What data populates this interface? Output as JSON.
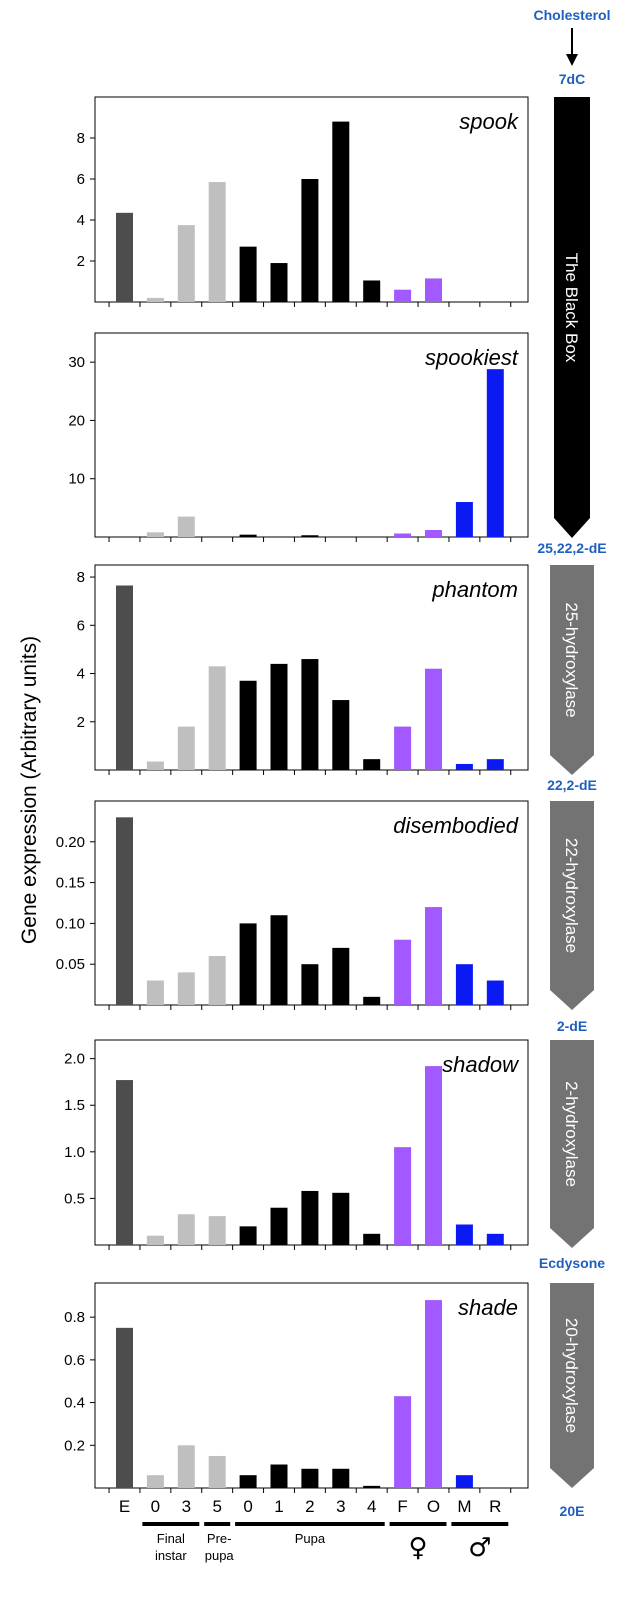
{
  "colors": {
    "embryo": "#4d4d4d",
    "larva": "#bfbfbf",
    "pupa": "#000000",
    "female": "#a259ff",
    "male": "#0b19f2",
    "metabolite_label": "#1f5fbf",
    "enzyme_box": "#737373",
    "black_box": "#000000"
  },
  "y_axis_label": "Gene expression (Arbitrary units)",
  "x_axis": {
    "categories": [
      "E",
      "0",
      "3",
      "5",
      "0",
      "1",
      "2",
      "3",
      "4",
      "F",
      "O",
      "M",
      "R"
    ],
    "groups": [
      {
        "label_lines": [
          "Final",
          "instar"
        ]
      },
      {
        "label_lines": [
          "Pre-",
          "pupa"
        ]
      },
      {
        "label_lines": [
          "Pupa"
        ]
      },
      {
        "symbol": "♀"
      },
      {
        "symbol": "♂"
      }
    ]
  },
  "pathway": {
    "metabolites": [
      "Cholesterol",
      "7dC",
      "25,22,2-dE",
      "22,2-dE",
      "2-dE",
      "Ecdysone",
      "20E"
    ],
    "steps": [
      "The Black Box",
      "25-hydroxylase",
      "22-hydroxylase",
      "2-hydroxylase",
      "20-hydroxylase"
    ]
  },
  "chart_data": [
    {
      "type": "bar",
      "title": "spook",
      "categories": [
        "E",
        "0",
        "3",
        "5",
        "0",
        "1",
        "2",
        "3",
        "4",
        "F",
        "O",
        "M",
        "R"
      ],
      "values": [
        4.35,
        0.2,
        3.75,
        5.85,
        2.7,
        1.9,
        6.0,
        8.8,
        1.05,
        0.6,
        1.15,
        0,
        0
      ],
      "ylim": [
        0,
        10
      ],
      "yticks": [
        2,
        4,
        6,
        8
      ],
      "ytick_labels": [
        "2",
        "4",
        "6",
        "8"
      ]
    },
    {
      "type": "bar",
      "title": "spookiest",
      "categories": [
        "E",
        "0",
        "3",
        "5",
        "0",
        "1",
        "2",
        "3",
        "4",
        "F",
        "O",
        "M",
        "R"
      ],
      "values": [
        0,
        0.8,
        3.5,
        0,
        0.4,
        0,
        0.3,
        0,
        0,
        0.6,
        1.2,
        6.0,
        28.8
      ],
      "ylim": [
        0,
        35
      ],
      "yticks": [
        10,
        20,
        30
      ],
      "ytick_labels": [
        "10",
        "20",
        "30"
      ]
    },
    {
      "type": "bar",
      "title": "phantom",
      "categories": [
        "E",
        "0",
        "3",
        "5",
        "0",
        "1",
        "2",
        "3",
        "4",
        "F",
        "O",
        "M",
        "R"
      ],
      "values": [
        7.65,
        0.35,
        1.8,
        4.3,
        3.7,
        4.4,
        4.6,
        2.9,
        0.45,
        1.8,
        4.2,
        0.25,
        0.45
      ],
      "ylim": [
        0,
        8.5
      ],
      "yticks": [
        2,
        4,
        6,
        8
      ],
      "ytick_labels": [
        "2",
        "4",
        "6",
        "8"
      ]
    },
    {
      "type": "bar",
      "title": "disembodied",
      "categories": [
        "E",
        "0",
        "3",
        "5",
        "0",
        "1",
        "2",
        "3",
        "4",
        "F",
        "O",
        "M",
        "R"
      ],
      "values": [
        0.23,
        0.03,
        0.04,
        0.06,
        0.1,
        0.11,
        0.05,
        0.07,
        0.01,
        0.08,
        0.12,
        0.05,
        0.03
      ],
      "ylim": [
        0,
        0.25
      ],
      "yticks": [
        0.05,
        0.1,
        0.15,
        0.2
      ],
      "ytick_labels": [
        "0.05",
        "0.10",
        "0.15",
        "0.20"
      ]
    },
    {
      "type": "bar",
      "title": "shadow",
      "categories": [
        "E",
        "0",
        "3",
        "5",
        "0",
        "1",
        "2",
        "3",
        "4",
        "F",
        "O",
        "M",
        "R"
      ],
      "values": [
        1.77,
        0.1,
        0.33,
        0.31,
        0.2,
        0.4,
        0.58,
        0.56,
        0.12,
        1.05,
        1.92,
        0.22,
        0.12
      ],
      "ylim": [
        0,
        2.2
      ],
      "yticks": [
        0.5,
        1.0,
        1.5,
        2.0
      ],
      "ytick_labels": [
        "0.5",
        "1.0",
        "1.5",
        "2.0"
      ]
    },
    {
      "type": "bar",
      "title": "shade",
      "categories": [
        "E",
        "0",
        "3",
        "5",
        "0",
        "1",
        "2",
        "3",
        "4",
        "F",
        "O",
        "M",
        "R"
      ],
      "values": [
        0.75,
        0.06,
        0.2,
        0.15,
        0.06,
        0.11,
        0.09,
        0.09,
        0.01,
        0.43,
        0.88,
        0.06,
        0
      ],
      "ylim": [
        0,
        0.96
      ],
      "yticks": [
        0.2,
        0.4,
        0.6,
        0.8
      ],
      "ytick_labels": [
        "0.2",
        "0.4",
        "0.6",
        "0.8"
      ]
    }
  ]
}
